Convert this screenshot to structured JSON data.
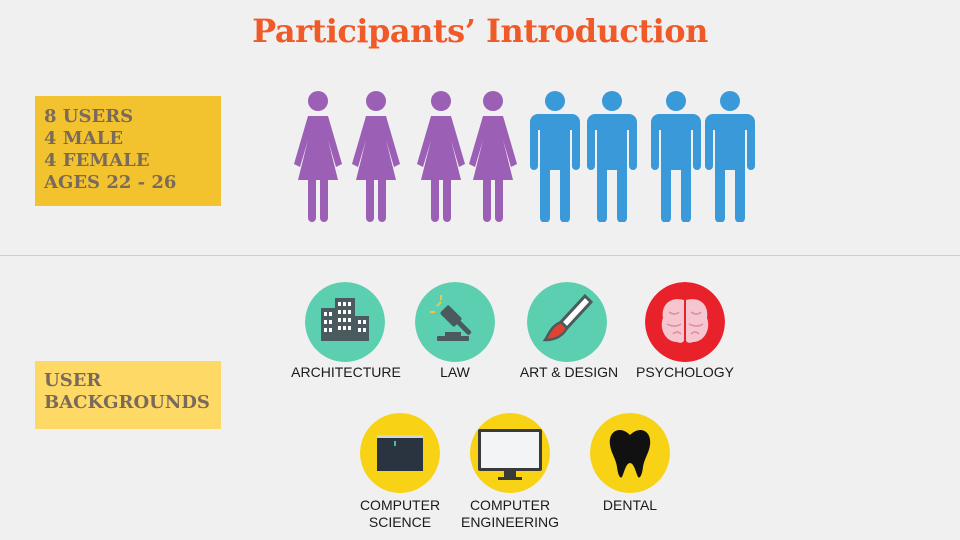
{
  "header": {
    "title": "Participants’ Introduction"
  },
  "stats": {
    "lines": [
      "8 USERS",
      "4 MALE",
      "4 FEMALE",
      "AGES 22 - 26"
    ]
  },
  "people": {
    "female_count": 4,
    "male_count": 4,
    "female_color": "#9b5fb5",
    "male_color": "#3a9ad9"
  },
  "backgrounds_box": {
    "lines": [
      "USER",
      "BACKGROUNDS"
    ]
  },
  "backgrounds": [
    {
      "label": "ARCHITECTURE",
      "icon": "building-icon",
      "color": "#5ccfb0"
    },
    {
      "label": "LAW",
      "icon": "gavel-icon",
      "color": "#5ccfb0"
    },
    {
      "label": "ART & DESIGN",
      "icon": "paintbrush-icon",
      "color": "#5ccfb0"
    },
    {
      "label": "PSYCHOLOGY",
      "icon": "brain-icon",
      "color": "#e8212b"
    },
    {
      "label_lines": [
        "COMPUTER",
        "SCIENCE"
      ],
      "icon": "terminal-icon",
      "color": "#f7d215"
    },
    {
      "label_lines": [
        "COMPUTER",
        "ENGINEERING"
      ],
      "icon": "monitor-icon",
      "color": "#f7d215"
    },
    {
      "label": "DENTAL",
      "icon": "tooth-icon",
      "color": "#f7d215"
    }
  ]
}
